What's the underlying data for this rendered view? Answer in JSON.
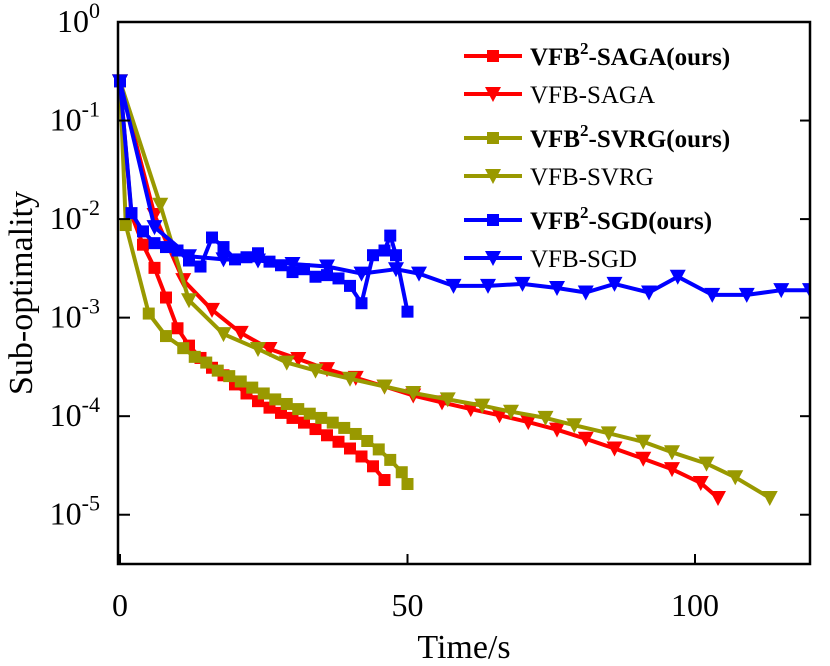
{
  "chart_data": {
    "type": "line",
    "title": "",
    "xlabel": "Time/s",
    "ylabel": "Sub-optimality",
    "xlim": [
      0,
      120
    ],
    "ylim_log10": [
      -5.5,
      0
    ],
    "yscale": "log",
    "x_ticks": [
      0,
      50,
      100
    ],
    "x_tick_labels": [
      "0",
      "50",
      "100"
    ],
    "y_ticks": [
      {
        "value": 1,
        "base": "10",
        "exp": "0"
      },
      {
        "value": 0.1,
        "base": "10",
        "exp": "-1"
      },
      {
        "value": 0.01,
        "base": "10",
        "exp": "-2"
      },
      {
        "value": 0.001,
        "base": "10",
        "exp": "-3"
      },
      {
        "value": 0.0001,
        "base": "10",
        "exp": "-4"
      },
      {
        "value": 1e-05,
        "base": "10",
        "exp": "-5"
      }
    ],
    "legend_position": "top-right",
    "series": [
      {
        "name": "VFB²-SAGA(ours)",
        "legend_main": "VFB",
        "legend_sup": "2",
        "legend_rest": "-SAGA(ours)",
        "bold": true,
        "color": "#ff0000",
        "marker": "square",
        "x": [
          0,
          2,
          4,
          6,
          8,
          10,
          12,
          14,
          16,
          18,
          20,
          22,
          24,
          26,
          28,
          30,
          32,
          34,
          36,
          38,
          40,
          42,
          44,
          46
        ],
        "y": [
          0.25,
          0.011,
          0.0055,
          0.0032,
          0.0016,
          0.00078,
          0.00052,
          0.00039,
          0.00031,
          0.00026,
          0.00021,
          0.00017,
          0.000142,
          0.000122,
          0.000108,
          9.6e-05,
          8.6e-05,
          7.4e-05,
          6.4e-05,
          5.5e-05,
          4.7e-05,
          3.9e-05,
          3.1e-05,
          2.25e-05
        ]
      },
      {
        "name": "VFB-SAGA",
        "legend_main": "VFB-SAGA",
        "legend_sup": "",
        "legend_rest": "",
        "bold": false,
        "color": "#ff0000",
        "marker": "triangle-down",
        "x": [
          0,
          6,
          11,
          16,
          21,
          26,
          31,
          36,
          41,
          46,
          51,
          56,
          61,
          66,
          71,
          76,
          81,
          86,
          91,
          96,
          101,
          104
        ],
        "y": [
          0.25,
          0.011,
          0.0024,
          0.0012,
          0.0007,
          0.00048,
          0.00038,
          0.0003,
          0.000245,
          0.0002,
          0.000162,
          0.000138,
          0.000118,
          0.000102,
          8.7e-05,
          7.3e-05,
          5.9e-05,
          4.7e-05,
          3.7e-05,
          2.9e-05,
          2.1e-05,
          1.48e-05
        ]
      },
      {
        "name": "VFB²-SVRG(ours)",
        "legend_main": "VFB",
        "legend_sup": "2",
        "legend_rest": "-SVRG(ours)",
        "bold": true,
        "color": "#999900",
        "marker": "square",
        "x": [
          0,
          1,
          5,
          8,
          11,
          13,
          15,
          17,
          19,
          21,
          23,
          25,
          27,
          29,
          31,
          33,
          35,
          37,
          39,
          41,
          43,
          45,
          47,
          49,
          50
        ],
        "y": [
          0.25,
          0.0087,
          0.0011,
          0.00065,
          0.00049,
          0.0004,
          0.00035,
          0.00029,
          0.000255,
          0.000225,
          0.000195,
          0.00017,
          0.000148,
          0.000133,
          0.000118,
          0.000106,
          9.6e-05,
          8.6e-05,
          7.6e-05,
          6.6e-05,
          5.6e-05,
          4.6e-05,
          3.6e-05,
          2.7e-05,
          2.05e-05
        ]
      },
      {
        "name": "VFB-SVRG",
        "legend_main": "VFB-SVRG",
        "legend_sup": "",
        "legend_rest": "",
        "bold": false,
        "color": "#999900",
        "marker": "triangle-down",
        "x": [
          0,
          7,
          12,
          18,
          24,
          29,
          34,
          40,
          46,
          51,
          57,
          63,
          68,
          74,
          79,
          85,
          91,
          96,
          102,
          107,
          113
        ],
        "y": [
          0.25,
          0.014,
          0.0015,
          0.00068,
          0.00048,
          0.00035,
          0.00029,
          0.00024,
          0.0002,
          0.000172,
          0.000148,
          0.000128,
          0.000111,
          9.6e-05,
          8.1e-05,
          6.7e-05,
          5.5e-05,
          4.3e-05,
          3.3e-05,
          2.4e-05,
          1.48e-05
        ]
      },
      {
        "name": "VFB²-SGD(ours)",
        "legend_main": "VFB",
        "legend_sup": "2",
        "legend_rest": "-SGD(ours)",
        "bold": true,
        "color": "#0000ff",
        "marker": "square",
        "x": [
          0,
          2,
          4,
          6,
          8,
          10,
          12,
          14,
          16,
          18,
          20,
          22,
          24,
          26,
          28,
          30,
          32,
          34,
          36,
          38,
          40,
          42,
          44,
          46,
          47,
          48,
          50
        ],
        "y": [
          0.25,
          0.0115,
          0.0075,
          0.0057,
          0.0052,
          0.0048,
          0.0038,
          0.0033,
          0.0065,
          0.0052,
          0.0039,
          0.0041,
          0.0045,
          0.0037,
          0.0034,
          0.0029,
          0.0031,
          0.0026,
          0.0027,
          0.0025,
          0.0021,
          0.0014,
          0.0043,
          0.0048,
          0.0068,
          0.0043,
          0.00115
        ]
      },
      {
        "name": "VFB-SGD",
        "legend_main": "VFB-SGD",
        "legend_sup": "",
        "legend_rest": "",
        "bold": false,
        "color": "#0000ff",
        "marker": "triangle-down",
        "x": [
          0,
          6,
          12,
          18,
          24,
          30,
          36,
          42,
          48,
          52,
          58,
          64,
          70,
          76,
          81,
          86,
          92,
          97,
          103,
          109,
          115,
          120
        ],
        "y": [
          0.25,
          0.0083,
          0.0042,
          0.0039,
          0.0038,
          0.0035,
          0.0033,
          0.0028,
          0.0031,
          0.0028,
          0.0021,
          0.0021,
          0.0022,
          0.002,
          0.0018,
          0.0022,
          0.0018,
          0.0026,
          0.0017,
          0.0017,
          0.0019,
          0.0019
        ]
      }
    ]
  }
}
